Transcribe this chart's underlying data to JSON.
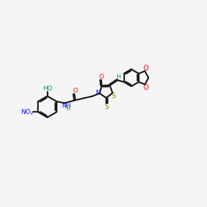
{
  "bg_color": "#f5f5f5",
  "bond_color": "#1a1a1a",
  "bond_width": 1.6,
  "figsize": [
    3.0,
    3.0
  ],
  "dpi": 100,
  "xlim": [
    -1.0,
    11.5
  ],
  "ylim": [
    -1.5,
    5.5
  ]
}
